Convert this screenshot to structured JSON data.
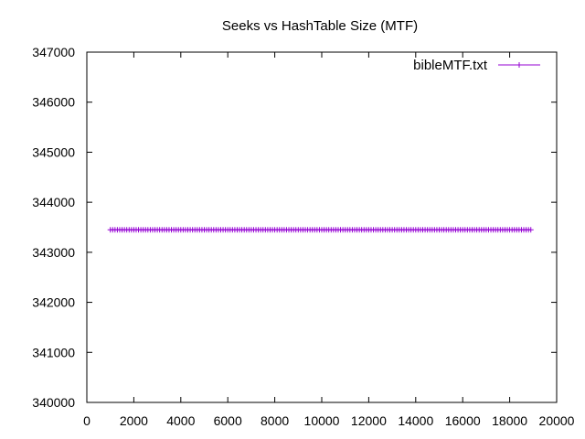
{
  "chart_data": {
    "type": "line",
    "title": "Seeks vs HashTable Size (MTF)",
    "xlabel": "",
    "ylabel": "",
    "xlim": [
      0,
      20000
    ],
    "ylim": [
      340000,
      347000
    ],
    "x_ticks": [
      0,
      2000,
      4000,
      6000,
      8000,
      10000,
      12000,
      14000,
      16000,
      18000,
      20000
    ],
    "y_ticks": [
      340000,
      341000,
      342000,
      343000,
      344000,
      345000,
      346000,
      347000
    ],
    "x_tick_labels": [
      "0",
      "2000",
      "4000",
      "6000",
      "8000",
      "10000",
      "12000",
      "14000",
      "16000",
      "18000",
      "20000"
    ],
    "y_tick_labels": [
      "340000",
      "341000",
      "342000",
      "343000",
      "344000",
      "345000",
      "346000",
      "347000"
    ],
    "grid": false,
    "legend_position": "top-right",
    "series": [
      {
        "name": "bibleMTF.txt",
        "color": "#9400D3",
        "marker": "plus",
        "x_start": 1000,
        "x_end": 18900,
        "x_step": 100,
        "y_constant": 343450
      }
    ]
  }
}
